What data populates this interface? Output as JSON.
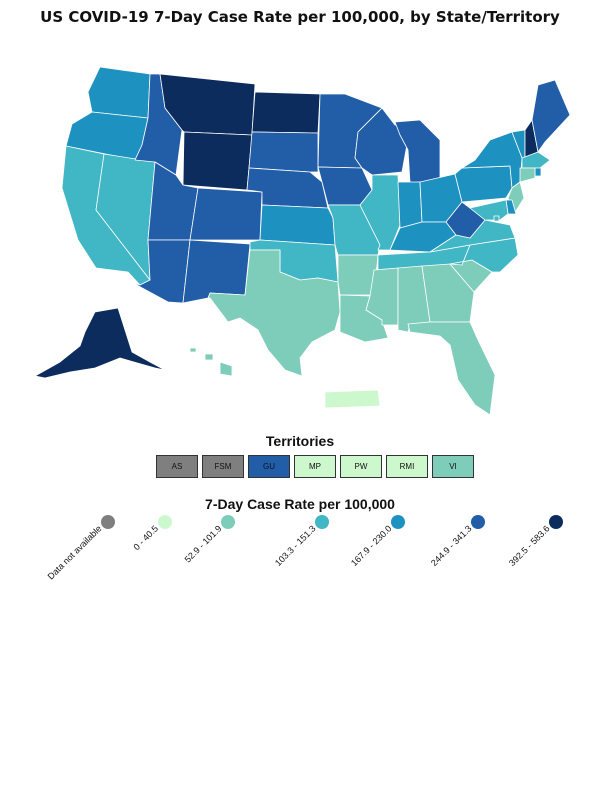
{
  "title": "US COVID-19 7-Day Case Rate per 100,000, by State/Territory",
  "colors": {
    "na": "#7f7f7f",
    "c1": "#cdf8cd",
    "c2": "#7ecdbb",
    "c3": "#41b6c4",
    "c4": "#1d91c0",
    "c5": "#225ea8",
    "c6": "#0c2c5e"
  },
  "territories": {
    "title": "Territories",
    "items": [
      {
        "label": "AS",
        "color": "na"
      },
      {
        "label": "FSM",
        "color": "na"
      },
      {
        "label": "GU",
        "color": "c5"
      },
      {
        "label": "MP",
        "color": "c1"
      },
      {
        "label": "PW",
        "color": "c1"
      },
      {
        "label": "RMI",
        "color": "c1"
      },
      {
        "label": "VI",
        "color": "c2"
      }
    ]
  },
  "legend": {
    "title": "7-Day Case Rate per 100,000",
    "items": [
      {
        "label": "Data not available",
        "color": "na"
      },
      {
        "label": "0 - 40.5",
        "color": "c1"
      },
      {
        "label": "52.9 - 101.9",
        "color": "c2"
      },
      {
        "label": "103.3 - 151.3",
        "color": "c3"
      },
      {
        "label": "167.9 - 230.0",
        "color": "c4"
      },
      {
        "label": "244.9 - 341.3",
        "color": "c5"
      },
      {
        "label": "392.5 - 583.6",
        "color": "c6"
      }
    ]
  },
  "states": {
    "WA": "c4",
    "OR": "c4",
    "CA": "c3",
    "NV": "c3",
    "ID": "c5",
    "MT": "c6",
    "WY": "c6",
    "UT": "c5",
    "CO": "c5",
    "AZ": "c5",
    "NM": "c5",
    "ND": "c6",
    "SD": "c5",
    "NE": "c5",
    "KS": "c4",
    "OK": "c3",
    "TX": "c2",
    "MN": "c5",
    "IA": "c5",
    "MO": "c3",
    "AR": "c2",
    "LA": "c2",
    "WI": "c5",
    "IL": "c3",
    "MI": "c5",
    "IN": "c4",
    "OH": "c4",
    "KY": "c4",
    "TN": "c3",
    "MS": "c2",
    "AL": "c2",
    "GA": "c2",
    "FL": "c2",
    "SC": "c2",
    "NC": "c3",
    "VA": "c3",
    "WV": "c5",
    "PA": "c4",
    "NY": "c4",
    "VT": "c4",
    "NH": "c6",
    "ME": "c5",
    "MA": "c3",
    "CT": "c2",
    "RI": "c4",
    "NJ": "c2",
    "DE": "c4",
    "MD": "c3",
    "DC": "c3",
    "AK": "c6",
    "HI": "c2",
    "PR": "c1"
  }
}
